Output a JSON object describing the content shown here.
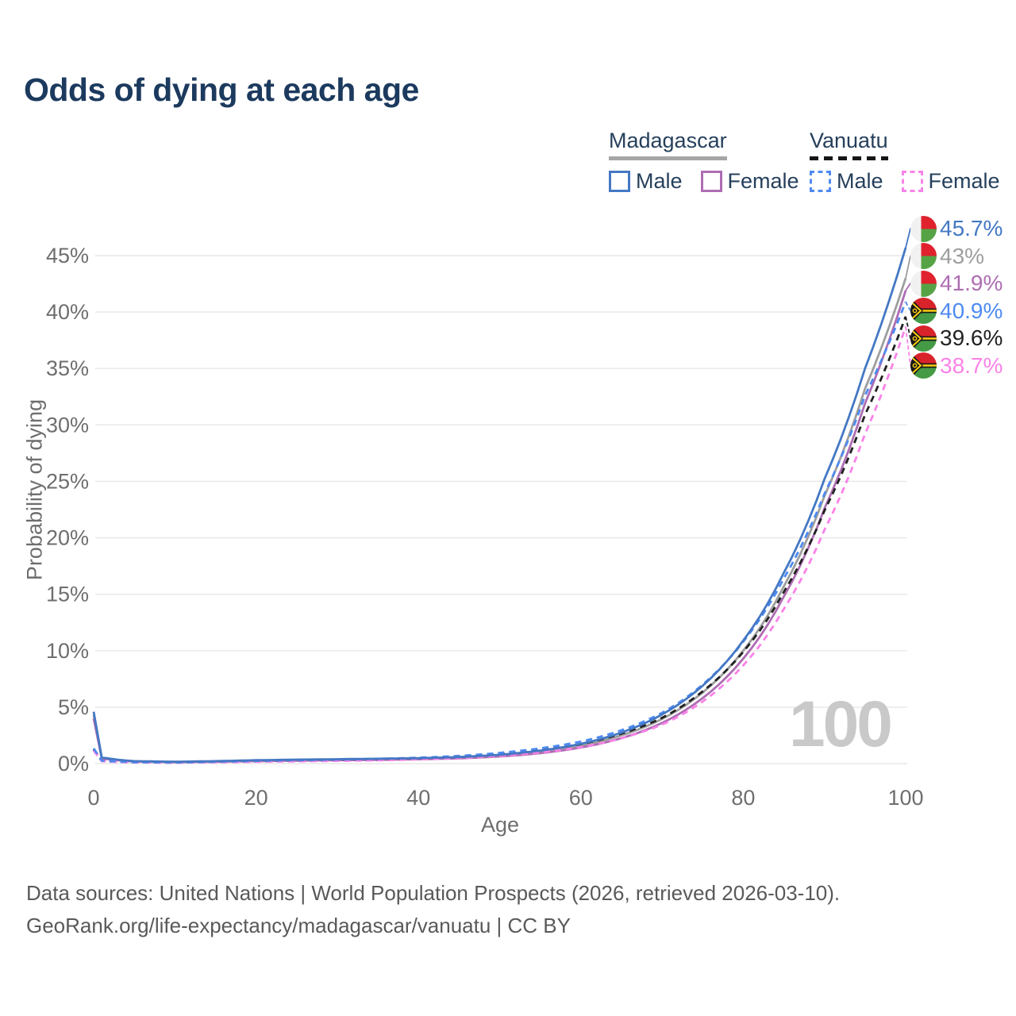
{
  "title": "Odds of dying at each age",
  "legend": {
    "madagascar": {
      "name": "Madagascar",
      "male_label": "Male",
      "female_label": "Female"
    },
    "vanuatu": {
      "name": "Vanuatu",
      "male_label": "Male",
      "female_label": "Female"
    }
  },
  "hover_age_watermark": "100",
  "footer": {
    "line1": "Data sources: United Nations | World Population Prospects (2026, retrieved 2026-03-10).",
    "line2": "GeoRank.org/life-expectancy/madagascar/vanuatu | CC BY"
  },
  "colors": {
    "title_text": "#1c3a5e",
    "legend_text": "#26405c",
    "axis_text": "#6e6e6e",
    "grid": "#e7e7e7",
    "watermark": "#c9c9c9",
    "madagascar_underline": "#a6a6a6",
    "vanuatu_underline": "#161616"
  },
  "chart_data": {
    "type": "line",
    "title": "Odds of dying at each age",
    "xlabel": "Age",
    "ylabel": "Probability of dying",
    "xlim": [
      0,
      100
    ],
    "ylim": [
      0,
      47.5
    ],
    "grid": true,
    "legend_position": "top-right",
    "xticks": [
      0,
      20,
      40,
      60,
      80,
      100
    ],
    "yticks": [
      {
        "value": 0,
        "label": "0%"
      },
      {
        "value": 5,
        "label": "5%"
      },
      {
        "value": 10,
        "label": "10%"
      },
      {
        "value": 15,
        "label": "15%"
      },
      {
        "value": 20,
        "label": "20%"
      },
      {
        "value": 25,
        "label": "25%"
      },
      {
        "value": 30,
        "label": "30%"
      },
      {
        "value": 35,
        "label": "35%"
      },
      {
        "value": 40,
        "label": "40%"
      },
      {
        "value": 45,
        "label": "45%"
      }
    ],
    "x": [
      0,
      1,
      5,
      10,
      15,
      20,
      25,
      30,
      35,
      40,
      45,
      50,
      55,
      60,
      65,
      70,
      75,
      80,
      85,
      90,
      95,
      100
    ],
    "series": [
      {
        "name": "Madagascar — Male",
        "country": "Madagascar",
        "sex": "Male",
        "line_style": "solid",
        "color": "#4478c4",
        "flag": "madagascar",
        "end_label": "45.7%",
        "values": [
          4.6,
          0.55,
          0.22,
          0.16,
          0.22,
          0.3,
          0.35,
          0.39,
          0.43,
          0.48,
          0.58,
          0.78,
          1.15,
          1.75,
          2.75,
          4.35,
          6.9,
          10.9,
          16.9,
          25.2,
          35.0,
          45.7
        ]
      },
      {
        "name": "Madagascar — Both sexes",
        "country": "Madagascar",
        "sex": "Both",
        "line_style": "solid",
        "color": "#9e9e9e",
        "flag": "madagascar",
        "end_label": "43%",
        "values": [
          4.3,
          0.5,
          0.2,
          0.15,
          0.19,
          0.26,
          0.31,
          0.34,
          0.38,
          0.43,
          0.52,
          0.7,
          1.03,
          1.58,
          2.5,
          3.95,
          6.3,
          10.0,
          15.7,
          23.7,
          33.2,
          43.0
        ]
      },
      {
        "name": "Madagascar — Female",
        "country": "Madagascar",
        "sex": "Female",
        "line_style": "solid",
        "color": "#ae6db3",
        "flag": "madagascar",
        "end_label": "41.9%",
        "values": [
          4.0,
          0.46,
          0.18,
          0.13,
          0.16,
          0.22,
          0.26,
          0.3,
          0.33,
          0.38,
          0.46,
          0.63,
          0.92,
          1.42,
          2.25,
          3.6,
          5.8,
          9.3,
          14.8,
          22.6,
          31.9,
          41.9
        ]
      },
      {
        "name": "Vanuatu — Male",
        "country": "Vanuatu",
        "sex": "Male",
        "line_style": "dashed",
        "color": "#4e8af2",
        "flag": "vanuatu",
        "end_label": "40.9%",
        "values": [
          1.35,
          0.26,
          0.12,
          0.1,
          0.16,
          0.24,
          0.3,
          0.35,
          0.42,
          0.52,
          0.68,
          0.95,
          1.35,
          1.95,
          2.95,
          4.5,
          7.0,
          10.8,
          16.4,
          23.9,
          32.6,
          40.9
        ]
      },
      {
        "name": "Vanuatu — Both sexes",
        "country": "Vanuatu",
        "sex": "Both",
        "line_style": "dashed",
        "color": "#212121",
        "flag": "vanuatu",
        "end_label": "39.6%",
        "values": [
          1.25,
          0.23,
          0.11,
          0.09,
          0.14,
          0.2,
          0.25,
          0.3,
          0.36,
          0.45,
          0.59,
          0.82,
          1.18,
          1.72,
          2.65,
          4.05,
          6.4,
          9.9,
          15.2,
          22.4,
          30.9,
          39.6
        ]
      },
      {
        "name": "Vanuatu — Female",
        "country": "Vanuatu",
        "sex": "Female",
        "line_style": "dashed",
        "color": "#fa82e8",
        "flag": "vanuatu",
        "end_label": "38.7%",
        "values": [
          1.15,
          0.21,
          0.1,
          0.08,
          0.11,
          0.16,
          0.2,
          0.24,
          0.29,
          0.37,
          0.49,
          0.68,
          0.98,
          1.45,
          2.25,
          3.45,
          5.5,
          8.7,
          13.7,
          20.7,
          29.2,
          38.7
        ]
      }
    ]
  }
}
